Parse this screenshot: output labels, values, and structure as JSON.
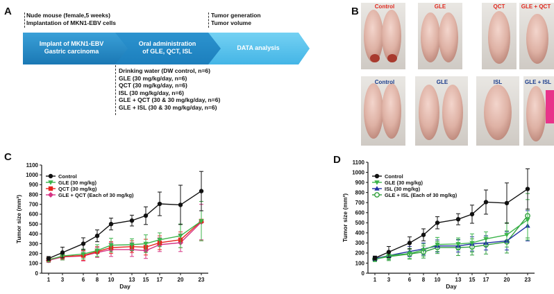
{
  "panels": {
    "a": "A",
    "b": "B",
    "c": "C",
    "d": "D"
  },
  "scheme": {
    "top_left": [
      "Nude mouse (female,5 weeks)",
      "Implantation of MKN1-EBV cells"
    ],
    "top_right": [
      "Tumor generation",
      "Tumor volume"
    ],
    "steps": [
      [
        "Implant of MKN1-EBV",
        "Gastric carcinoma"
      ],
      [
        "Oral administration",
        "of GLE, QCT, ISL"
      ],
      [
        "DATA analysis"
      ]
    ],
    "groups": [
      "Drinking water (DW control, n=6)",
      "GLE (30 mg/kg/day, n=6)",
      "QCT (30 mg/kg/day, n=6)",
      "ISL (30 mg/kg/day, n=6)",
      "GLE + QCT (30 & 30 mg/kg/day, n=6)",
      "GLE + ISL (30 & 30 mg/kg/day, n=6)"
    ],
    "colors": {
      "arrow_dark": "#1f86c0",
      "arrow_light": "#5ec2ec"
    }
  },
  "photos": {
    "row1": [
      "Control",
      "GLE",
      "QCT",
      "GLE + QCT"
    ],
    "row2": [
      "Control",
      "GLE",
      "ISL",
      "GLE + ISL"
    ],
    "label_colors": {
      "row1": "#e0281e",
      "row2": "#1a3c8c"
    }
  },
  "chart_data": [
    {
      "type": "line",
      "panel": "C",
      "xlabel": "Day",
      "ylabel": "Tumor size (mm³)",
      "x": [
        1,
        3,
        6,
        8,
        10,
        13,
        15,
        17,
        20,
        23
      ],
      "xticks": [
        "1",
        "3",
        "6",
        "8",
        "10",
        "13",
        "15",
        "17",
        "20",
        "23"
      ],
      "ylim": [
        0,
        1100
      ],
      "yticks": [
        "0",
        "100",
        "200",
        "300",
        "400",
        "500",
        "600",
        "700",
        "800",
        "900",
        "1000",
        "1100"
      ],
      "legend_position": "top-left",
      "series": [
        {
          "name": "Control",
          "color": "#111111",
          "marker": "circle",
          "values": [
            150,
            210,
            300,
            380,
            500,
            535,
            585,
            705,
            695,
            835
          ],
          "errors": [
            20,
            55,
            60,
            60,
            60,
            55,
            90,
            120,
            200,
            200
          ]
        },
        {
          "name": "GLE (30 mg/kg)",
          "color": "#3cb44b",
          "marker": "triangle-down",
          "values": [
            135,
            175,
            195,
            230,
            285,
            290,
            300,
            340,
            380,
            530
          ],
          "errors": [
            20,
            40,
            50,
            60,
            70,
            60,
            90,
            70,
            120,
            200
          ]
        },
        {
          "name": "QCT (30 mg/kg)",
          "color": "#e6261f",
          "marker": "square",
          "values": [
            140,
            170,
            180,
            220,
            260,
            270,
            265,
            310,
            340,
            530
          ],
          "errors": [
            20,
            30,
            50,
            50,
            60,
            60,
            80,
            70,
            80,
            200
          ]
        },
        {
          "name": "GLE + QCT (Each of 30 mg/kg)",
          "color": "#d63384",
          "marker": "diamond",
          "values": [
            130,
            165,
            175,
            210,
            240,
            240,
            230,
            290,
            310,
            520
          ],
          "errors": [
            20,
            30,
            50,
            50,
            70,
            70,
            80,
            70,
            90,
            180
          ]
        }
      ]
    },
    {
      "type": "line",
      "panel": "D",
      "xlabel": "Day",
      "ylabel": "Tumor size (mm³)",
      "x": [
        1,
        3,
        6,
        8,
        10,
        13,
        15,
        17,
        20,
        23
      ],
      "xticks": [
        "1",
        "3",
        "6",
        "8",
        "10",
        "13",
        "15",
        "17",
        "20",
        "23"
      ],
      "ylim": [
        0,
        1100
      ],
      "yticks": [
        "0",
        "100",
        "200",
        "300",
        "400",
        "500",
        "600",
        "700",
        "800",
        "900",
        "1000",
        "1100"
      ],
      "legend_position": "top-left",
      "series": [
        {
          "name": "Control",
          "color": "#111111",
          "marker": "circle",
          "values": [
            150,
            210,
            300,
            380,
            500,
            535,
            585,
            705,
            695,
            835
          ],
          "errors": [
            20,
            55,
            60,
            60,
            60,
            55,
            90,
            120,
            200,
            200
          ]
        },
        {
          "name": "GLE (30 mg/kg)",
          "color": "#3cb44b",
          "marker": "triangle-down",
          "values": [
            135,
            175,
            195,
            230,
            285,
            290,
            300,
            340,
            380,
            530
          ],
          "errors": [
            20,
            40,
            50,
            60,
            70,
            60,
            90,
            70,
            120,
            200
          ]
        },
        {
          "name": "ISL (30 mg/kg)",
          "color": "#1f2fa3",
          "marker": "triangle-up",
          "values": [
            145,
            175,
            215,
            240,
            270,
            270,
            290,
            300,
            320,
            470
          ],
          "errors": [
            20,
            40,
            50,
            60,
            60,
            60,
            70,
            70,
            90,
            150
          ]
        },
        {
          "name": "GLE + ISL (Each of 30 mg/kg)",
          "color": "#2e9e3a",
          "marker": "circle-open",
          "values": [
            140,
            165,
            190,
            210,
            255,
            255,
            260,
            280,
            310,
            570
          ],
          "errors": [
            20,
            40,
            50,
            60,
            60,
            80,
            80,
            90,
            110,
            220
          ]
        }
      ]
    }
  ]
}
